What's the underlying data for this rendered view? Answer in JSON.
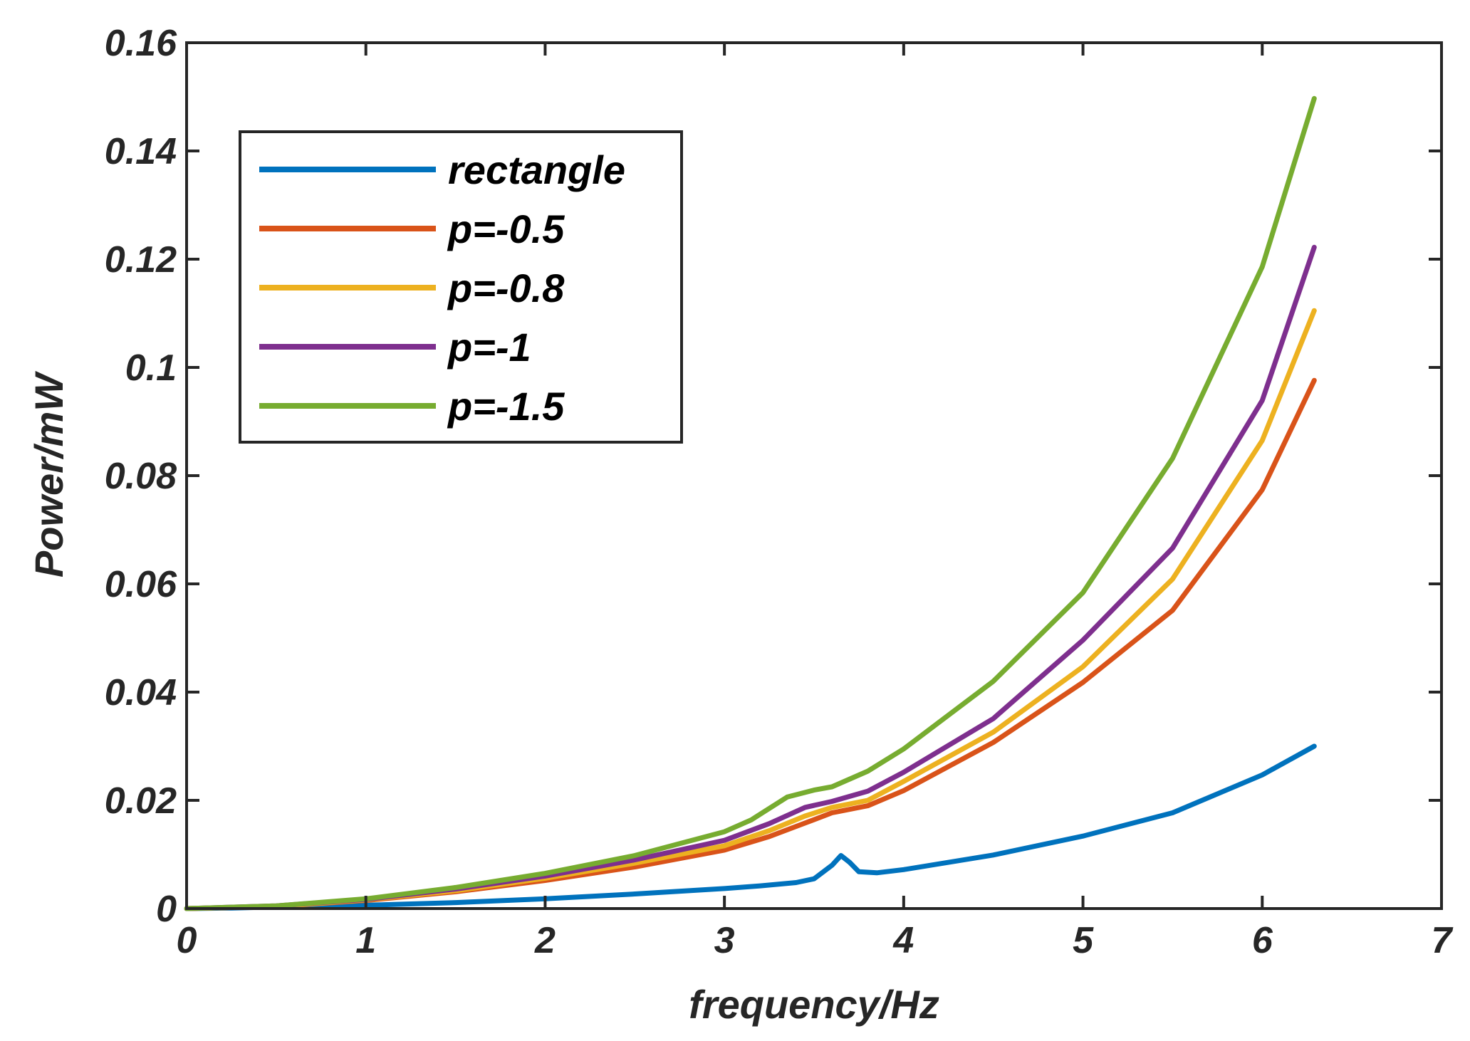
{
  "chart_data": {
    "type": "line",
    "title": "",
    "xlabel": "frequency/Hz",
    "ylabel": "Power/mW",
    "xlim": [
      0,
      7
    ],
    "ylim": [
      0,
      0.16
    ],
    "xticks": [
      0,
      1,
      2,
      3,
      4,
      5,
      6,
      7
    ],
    "yticks": [
      0,
      0.02,
      0.04,
      0.06,
      0.08,
      0.1,
      0.12,
      0.14,
      0.16
    ],
    "xtick_labels": [
      "0",
      "1",
      "2",
      "3",
      "4",
      "5",
      "6",
      "7"
    ],
    "ytick_labels": [
      "0",
      "0.02",
      "0.04",
      "0.06",
      "0.08",
      "0.1",
      "0.12",
      "0.14",
      "0.16"
    ],
    "grid": false,
    "legend_position": "top-left",
    "series": [
      {
        "name": "rectangle",
        "color": "#0072BD",
        "x": [
          0,
          0.25,
          0.5,
          1,
          1.5,
          2,
          2.5,
          3,
          3.2,
          3.4,
          3.5,
          3.6,
          3.65,
          3.7,
          3.75,
          3.85,
          4,
          4.5,
          5,
          5.5,
          6,
          6.29
        ],
        "y": [
          0,
          0.0001,
          0.0003,
          0.0006,
          0.0011,
          0.0018,
          0.0027,
          0.0037,
          0.0042,
          0.0048,
          0.0055,
          0.008,
          0.0098,
          0.0085,
          0.0068,
          0.0066,
          0.0072,
          0.0099,
          0.0134,
          0.0177,
          0.0247,
          0.03
        ]
      },
      {
        "name": "p=-0.5",
        "color": "#D95319",
        "x": [
          0,
          0.5,
          1,
          1.5,
          2,
          2.5,
          3,
          3.25,
          3.45,
          3.6,
          3.8,
          4,
          4.5,
          5,
          5.5,
          6,
          6.29
        ],
        "y": [
          0,
          0.0004,
          0.0015,
          0.0031,
          0.0052,
          0.0077,
          0.0108,
          0.0133,
          0.0158,
          0.0177,
          0.019,
          0.0218,
          0.0307,
          0.0418,
          0.0551,
          0.0774,
          0.0976
        ]
      },
      {
        "name": "p=-0.8",
        "color": "#EDB120",
        "x": [
          0,
          0.5,
          1,
          1.5,
          2,
          2.5,
          3,
          3.25,
          3.45,
          3.6,
          3.8,
          4,
          4.5,
          5,
          5.5,
          6,
          6.29
        ],
        "y": [
          0,
          0.0004,
          0.0016,
          0.0033,
          0.0056,
          0.0084,
          0.0116,
          0.0144,
          0.0171,
          0.0187,
          0.02,
          0.0235,
          0.0326,
          0.0447,
          0.0609,
          0.0865,
          0.1105
        ]
      },
      {
        "name": "p=-1",
        "color": "#7E2F8E",
        "x": [
          0,
          0.5,
          1,
          1.5,
          2,
          2.5,
          3,
          3.25,
          3.45,
          3.6,
          3.8,
          4,
          4.5,
          5,
          5.5,
          6,
          6.29
        ],
        "y": [
          0,
          0.0005,
          0.0017,
          0.0036,
          0.006,
          0.009,
          0.0126,
          0.0157,
          0.0187,
          0.0198,
          0.0217,
          0.0252,
          0.0351,
          0.0496,
          0.0666,
          0.0939,
          0.1222
        ]
      },
      {
        "name": "p=-1.5",
        "color": "#77AC30",
        "x": [
          0,
          0.5,
          1,
          1.5,
          2,
          2.5,
          3,
          3.15,
          3.35,
          3.5,
          3.6,
          3.8,
          4,
          4.5,
          5,
          5.5,
          6,
          6.29
        ],
        "y": [
          0,
          0.0005,
          0.0018,
          0.0039,
          0.0065,
          0.0098,
          0.0142,
          0.0164,
          0.0206,
          0.0219,
          0.0225,
          0.0254,
          0.0295,
          0.042,
          0.0584,
          0.0832,
          0.1186,
          0.1497
        ]
      }
    ]
  }
}
